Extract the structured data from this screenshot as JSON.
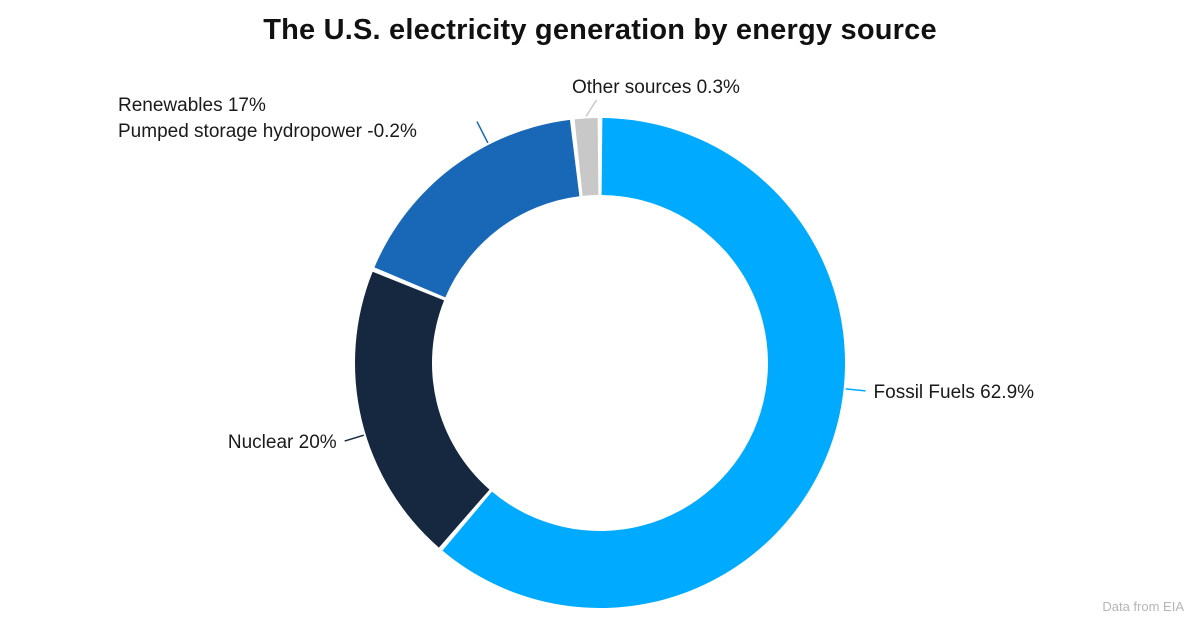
{
  "title": "The U.S. electricity generation by energy source",
  "source_note": "Data from EIA",
  "chart_data": {
    "type": "pie",
    "style": "donut",
    "title": "The U.S. electricity generation by energy source",
    "slices": [
      {
        "label": "Fossil Fuels 62.9%",
        "value": 62.9,
        "color": "#00aaff"
      },
      {
        "label": "Nuclear 20%",
        "value": 20,
        "color": "#15283f"
      },
      {
        "label": "Renewables 17%",
        "label2": "Pumped storage hydropower -0.2%",
        "value": 17,
        "color": "#1868b7"
      },
      {
        "label": "Other sources 0.3%",
        "value": 0.3,
        "color": "#c8c8c8"
      }
    ]
  }
}
